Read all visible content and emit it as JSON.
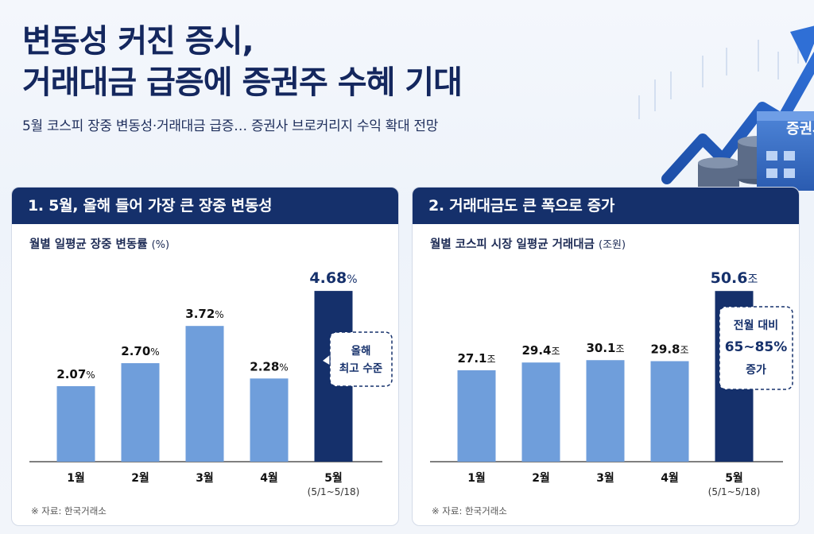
{
  "header": {
    "title_line1": "변동성 커진 증시,",
    "title_line2": "거래대금 급증에 증권주 수혜 기대",
    "subtitle": "5월 코스피 장중 변동성·거래대금 급증… 증권사 브로커리지 수익 확대 전망",
    "building_sign": "증권사"
  },
  "colors": {
    "navy": "#15306b",
    "bar_light": "#6f9edb",
    "bar_highlight": "#15306b"
  },
  "chart_data": [
    {
      "type": "bar",
      "header": "1. 5월, 올해 들어 가장 큰 장중 변동성",
      "title": "월별 일평균 장중 변동률",
      "title_unit": "(%)",
      "categories": [
        "1월",
        "2월",
        "3월",
        "4월",
        "5월"
      ],
      "category_sublabels": [
        "",
        "",
        "",
        "",
        "(5/1~5/18)"
      ],
      "values": [
        2.07,
        2.7,
        3.72,
        2.28,
        4.68
      ],
      "value_labels": [
        "2.07",
        "2.70",
        "3.72",
        "2.28",
        "4.68"
      ],
      "value_suffix": "%",
      "highlight_index": 4,
      "annotation": [
        "올해",
        "최고 수준"
      ],
      "ylim": [
        0,
        4.9
      ],
      "source": "※ 자료: 한국거래소"
    },
    {
      "type": "bar",
      "header": "2. 거래대금도 큰 폭으로 증가",
      "title": "월별 코스피 시장 일평균 거래대금",
      "title_unit": "(조원)",
      "categories": [
        "1월",
        "2월",
        "3월",
        "4월",
        "5월"
      ],
      "category_sublabels": [
        "",
        "",
        "",
        "",
        "(5/1~5/18)"
      ],
      "values": [
        27.1,
        29.4,
        30.1,
        29.8,
        50.6
      ],
      "value_labels": [
        "27.1",
        "29.4",
        "30.1",
        "29.8",
        "50.6"
      ],
      "value_suffix": "조",
      "highlight_index": 4,
      "annotation": [
        "전월 대비",
        "65~85%",
        "증가"
      ],
      "ylim": [
        0,
        53
      ],
      "source": "※ 자료: 한국거래소"
    }
  ]
}
